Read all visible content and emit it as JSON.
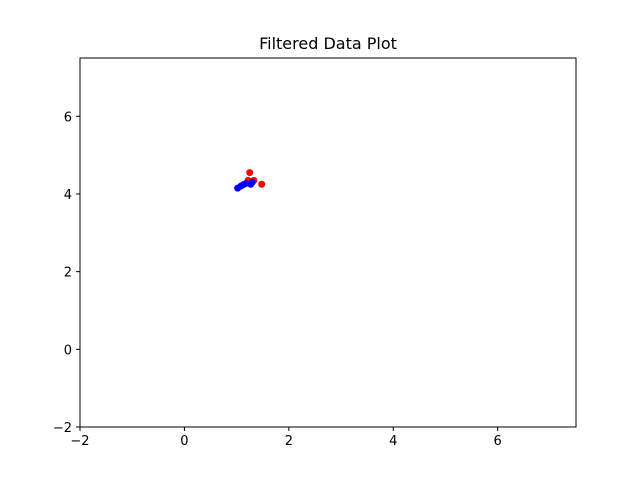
{
  "chart_data": {
    "type": "scatter",
    "title": "Filtered Data Plot",
    "xlabel": "",
    "ylabel": "",
    "xlim": [
      -2,
      7.5
    ],
    "ylim": [
      -2,
      7.5
    ],
    "x_ticks": [
      -2,
      0,
      2,
      4,
      6
    ],
    "y_ticks": [
      -2,
      0,
      2,
      4,
      6
    ],
    "grid": false,
    "legend": false,
    "series": [
      {
        "color": "#ff0000",
        "points": [
          {
            "x": 1.25,
            "y": 4.55
          },
          {
            "x": 1.22,
            "y": 4.35
          },
          {
            "x": 1.33,
            "y": 4.35
          },
          {
            "x": 1.48,
            "y": 4.25
          }
        ]
      },
      {
        "color": "#0000ff",
        "points": [
          {
            "x": 1.02,
            "y": 4.15
          },
          {
            "x": 1.08,
            "y": 4.2
          },
          {
            "x": 1.13,
            "y": 4.24
          },
          {
            "x": 1.18,
            "y": 4.27
          },
          {
            "x": 1.27,
            "y": 4.25
          },
          {
            "x": 1.3,
            "y": 4.3
          }
        ]
      }
    ]
  }
}
